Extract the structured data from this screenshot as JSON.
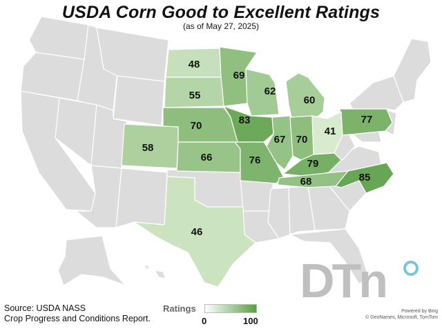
{
  "header": {
    "title": "USDA Corn Good to Excellent Ratings",
    "subtitle": "(as of May 27, 2025)"
  },
  "map": {
    "base_color": "#dcdcdc",
    "scale_low_color": "#e8f4df",
    "scale_high_color": "#5a9e46",
    "states": [
      {
        "state": "North Dakota",
        "value": 48
      },
      {
        "state": "Minnesota",
        "value": 69
      },
      {
        "state": "South Dakota",
        "value": 55
      },
      {
        "state": "Wisconsin",
        "value": 62
      },
      {
        "state": "Michigan",
        "value": 60
      },
      {
        "state": "Nebraska",
        "value": 70
      },
      {
        "state": "Iowa",
        "value": 83
      },
      {
        "state": "Pennsylvania",
        "value": 77
      },
      {
        "state": "Colorado",
        "value": 58
      },
      {
        "state": "Illinois",
        "value": 67
      },
      {
        "state": "Indiana",
        "value": 70
      },
      {
        "state": "Ohio",
        "value": 41
      },
      {
        "state": "Kansas",
        "value": 66
      },
      {
        "state": "Missouri",
        "value": 76
      },
      {
        "state": "Kentucky",
        "value": 79
      },
      {
        "state": "Tennessee",
        "value": 68
      },
      {
        "state": "North Carolina",
        "value": 85
      },
      {
        "state": "Texas",
        "value": 46
      }
    ]
  },
  "footer": {
    "source_line1": "Source: USDA NASS",
    "source_line2": "Crop Progress and Conditions Report."
  },
  "legend": {
    "title": "Ratings",
    "min": "0",
    "max": "100"
  },
  "branding": {
    "logo_text": "DTN",
    "logo_letters": "DTn",
    "powered_line1": "Powered by Bing",
    "powered_line2": "© GeoNames, Microsoft, TomTom"
  }
}
